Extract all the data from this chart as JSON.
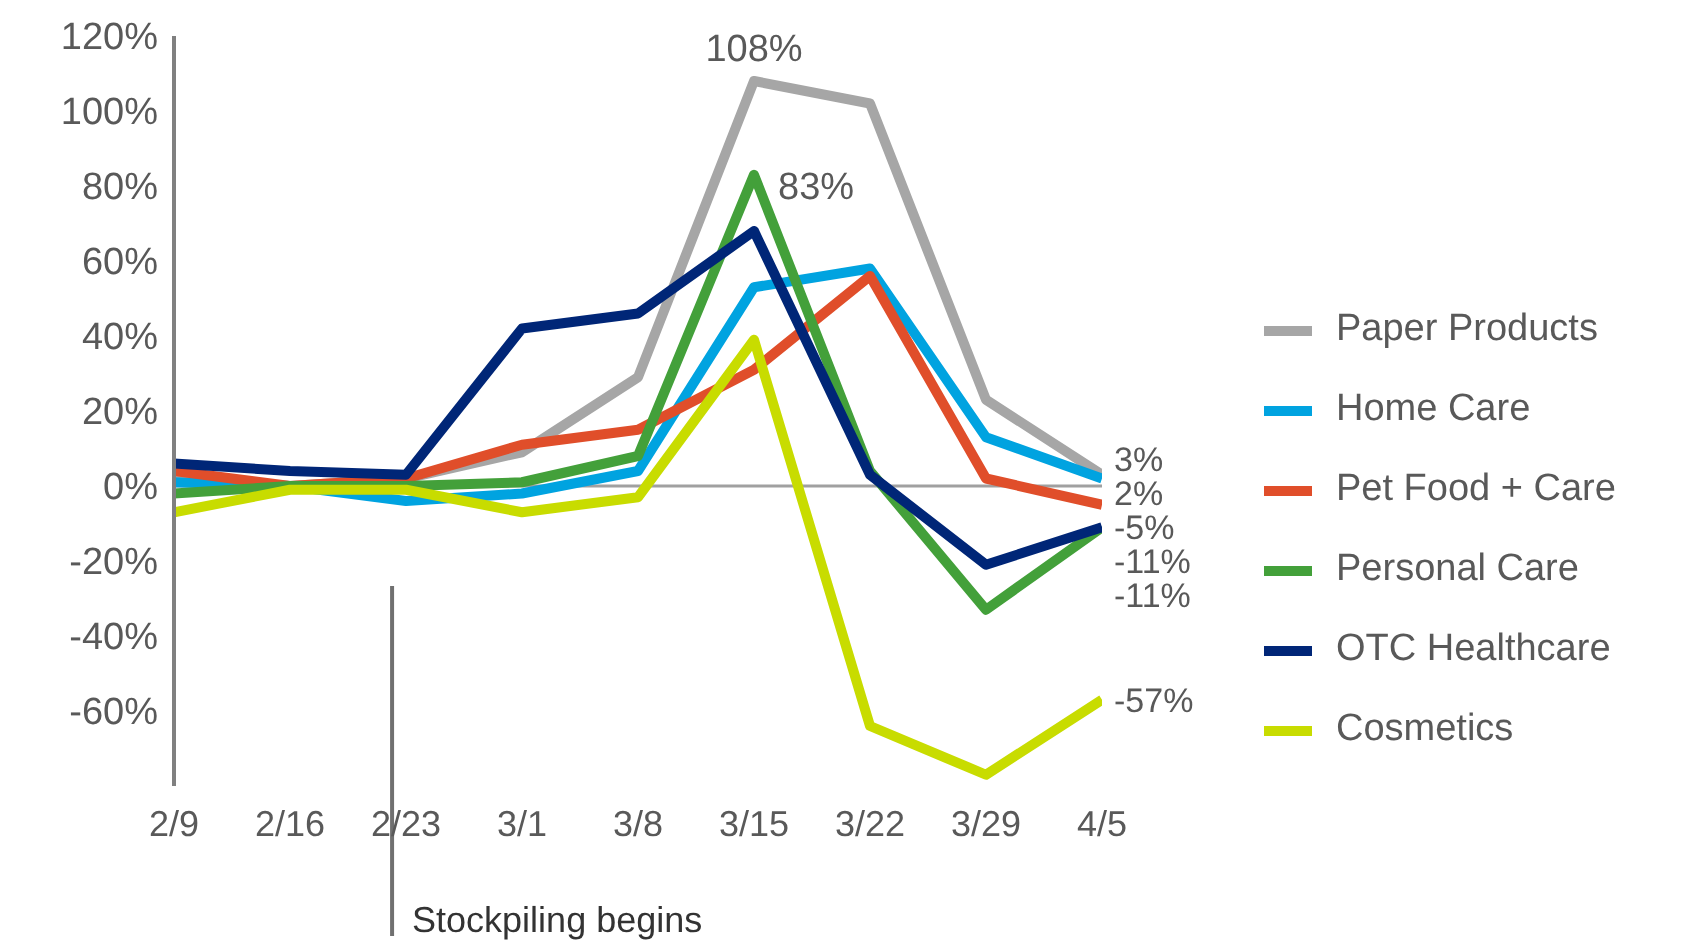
{
  "chart_data": {
    "type": "line",
    "categories": [
      "2/9",
      "2/16",
      "2/23",
      "3/1",
      "3/8",
      "3/15",
      "3/22",
      "3/29",
      "4/5"
    ],
    "ylim": [
      -80,
      120
    ],
    "yticks": [
      {
        "value": -60,
        "label": "-60%"
      },
      {
        "value": -40,
        "label": "-40%"
      },
      {
        "value": -20,
        "label": "-20%"
      },
      {
        "value": 0,
        "label": "0%"
      },
      {
        "value": 20,
        "label": "20%"
      },
      {
        "value": 40,
        "label": "40%"
      },
      {
        "value": 60,
        "label": "60%"
      },
      {
        "value": 80,
        "label": "80%"
      },
      {
        "value": 100,
        "label": "100%"
      },
      {
        "value": 120,
        "label": "120%"
      }
    ],
    "legend": "right",
    "marker": "none",
    "line_style": "solid",
    "series": [
      {
        "name": "Paper Products",
        "color": "#a6a6a6",
        "values": [
          2,
          0,
          2,
          9,
          29,
          108,
          102,
          23,
          3
        ],
        "value_labels": [
          null,
          null,
          null,
          null,
          null,
          "108%",
          null,
          null,
          "3%"
        ]
      },
      {
        "name": "Home Care",
        "color": "#00a3e0",
        "values": [
          1,
          0,
          -4,
          -2,
          4,
          53,
          58,
          13,
          2
        ],
        "value_labels": [
          null,
          null,
          null,
          null,
          null,
          null,
          null,
          null,
          "2%"
        ]
      },
      {
        "name": "Pet Food + Care",
        "color": "#e04e2a",
        "values": [
          4,
          0,
          2,
          11,
          15,
          31,
          56,
          2,
          -5
        ],
        "value_labels": [
          null,
          null,
          null,
          null,
          null,
          null,
          null,
          null,
          "-5%"
        ]
      },
      {
        "name": "Personal Care",
        "color": "#43a03a",
        "values": [
          -2,
          0,
          0,
          1,
          8,
          83,
          4,
          -33,
          -11
        ],
        "value_labels": [
          null,
          null,
          null,
          null,
          null,
          "83%",
          null,
          null,
          "-11%"
        ]
      },
      {
        "name": "OTC Healthcare",
        "color": "#002677",
        "values": [
          6,
          4,
          3,
          42,
          46,
          68,
          3,
          -21,
          -11
        ],
        "value_labels": [
          null,
          null,
          null,
          null,
          null,
          null,
          null,
          null,
          "-11%"
        ]
      },
      {
        "name": "Cosmetics",
        "color": "#c8dc00",
        "values": [
          -7,
          -1,
          -1,
          -7,
          -3,
          39,
          -64,
          -77,
          -57
        ],
        "value_labels": [
          null,
          null,
          null,
          null,
          null,
          null,
          null,
          null,
          "-57%"
        ]
      }
    ],
    "ref_lines": [
      {
        "axis": "y",
        "value": 0,
        "color": "#a0a0a0"
      }
    ],
    "annotations": [
      "Stockpiling begins"
    ]
  }
}
